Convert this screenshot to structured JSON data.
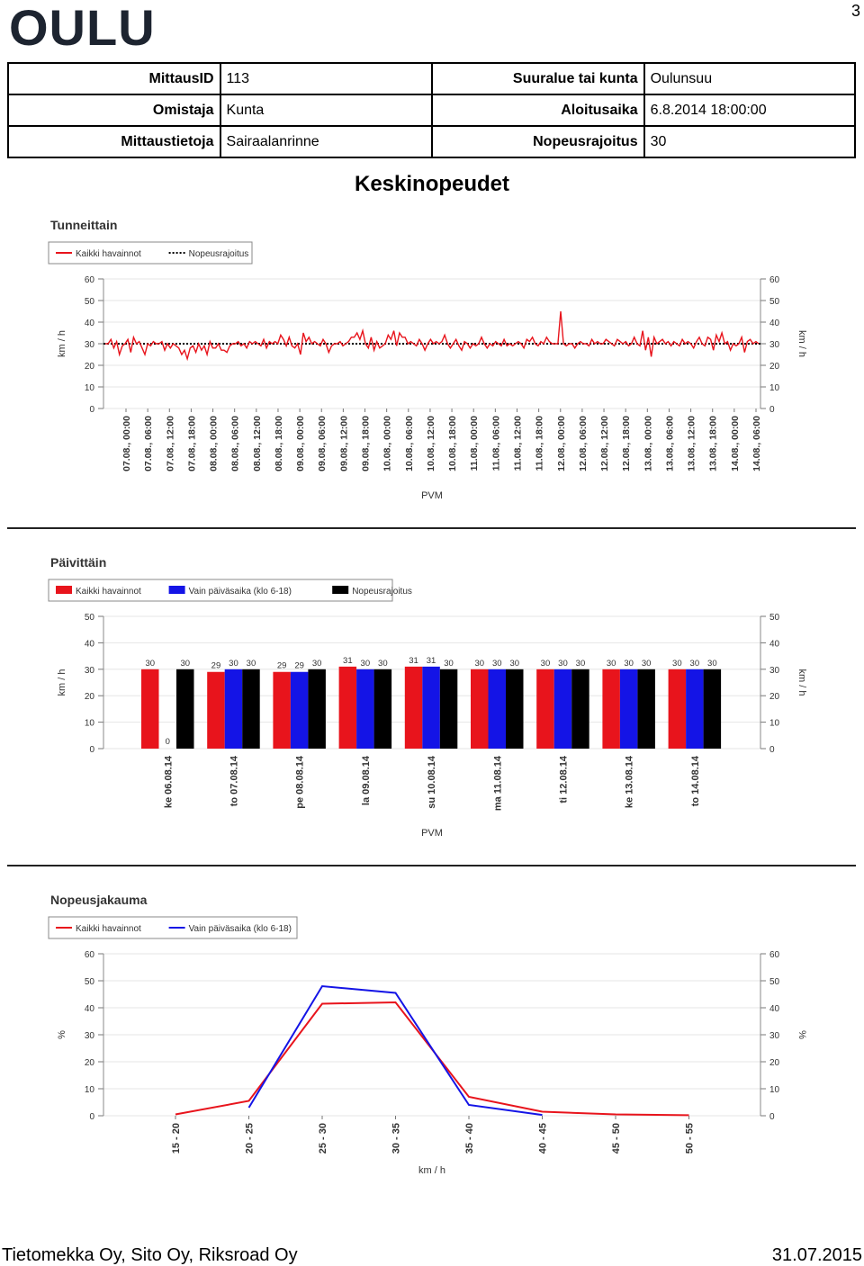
{
  "header": {
    "logo_text": "OULU",
    "page_number": "3"
  },
  "info": {
    "rows": [
      {
        "k1": "MittausID",
        "v1": "113",
        "k2": "Suuralue tai kunta",
        "v2": "Oulunsuu"
      },
      {
        "k1": "Omistaja",
        "v1": "Kunta",
        "k2": "Aloitusaika",
        "v2": "6.8.2014 18:00:00"
      },
      {
        "k1": "Mittaustietoja",
        "v1": "Sairaalanrinne",
        "k2": "Nopeusrajoitus",
        "v2": "30"
      }
    ]
  },
  "doc_title": "Keskinopeudet",
  "footer": {
    "left": "Tietomekka Oy, Sito Oy, Riksroad Oy",
    "right": "31.07.2015"
  },
  "colors": {
    "red": "#e8141c",
    "blue": "#1414e6",
    "black": "#000000",
    "limit": "#000000"
  },
  "chart_data": [
    {
      "type": "line",
      "title": "Tunneittain",
      "legend": [
        "Kaikki havainnot",
        "Nopeusrajoitus"
      ],
      "legend_placement": "top-left",
      "ylabel": "km / h",
      "ylabel_right": "km / h",
      "xlabel": "PVM",
      "ylim": [
        0,
        60
      ],
      "yticks": [
        0,
        10,
        20,
        30,
        40,
        50,
        60
      ],
      "grid": true,
      "x_tick_labels": [
        "07.08., 00:00",
        "07.08., 06:00",
        "07.08., 12:00",
        "07.08., 18:00",
        "08.08., 00:00",
        "08.08., 06:00",
        "08.08., 12:00",
        "08.08., 18:00",
        "09.08., 00:00",
        "09.08., 06:00",
        "09.08., 12:00",
        "09.08., 18:00",
        "10.08., 00:00",
        "10.08., 06:00",
        "10.08., 12:00",
        "10.08., 18:00",
        "11.08., 00:00",
        "11.08., 06:00",
        "11.08., 12:00",
        "11.08., 18:00",
        "12.08., 00:00",
        "12.08., 06:00",
        "12.08., 12:00",
        "12.08., 18:00",
        "13.08., 00:00",
        "13.08., 06:00",
        "13.08., 12:00",
        "13.08., 18:00",
        "14.08., 00:00",
        "14.08., 06:00"
      ],
      "series": [
        {
          "name": "Kaikki havainnot",
          "color": "red",
          "values": [
            30,
            30,
            32,
            28,
            31,
            25,
            29,
            30,
            32,
            26,
            33,
            30,
            31,
            28,
            25,
            30,
            29,
            31,
            30,
            30,
            31,
            27,
            30,
            28,
            30,
            29,
            28,
            25,
            27,
            23,
            28,
            29,
            26,
            30,
            27,
            29,
            25,
            31,
            28,
            28,
            30,
            27,
            27,
            26,
            29,
            30,
            30,
            31,
            29,
            30,
            28,
            31,
            30,
            31,
            30,
            29,
            32,
            28,
            31,
            30,
            31,
            30,
            34,
            32,
            29,
            33,
            29,
            28,
            30,
            25,
            35,
            31,
            33,
            30,
            31,
            30,
            29,
            32,
            30,
            26,
            29,
            30,
            30,
            31,
            29,
            30,
            31,
            33,
            33,
            35,
            32,
            36,
            30,
            28,
            33,
            27,
            31,
            28,
            29,
            30,
            34,
            32,
            36,
            29,
            35,
            33,
            33,
            30,
            31,
            30,
            29,
            32,
            30,
            27,
            30,
            32,
            30,
            31,
            30,
            31,
            34,
            30,
            28,
            30,
            32,
            29,
            27,
            31,
            30,
            28,
            30,
            29,
            30,
            33,
            30,
            28,
            30,
            29,
            31,
            30,
            29,
            32,
            29,
            30,
            29,
            30,
            31,
            30,
            28,
            32,
            31,
            33,
            30,
            29,
            31,
            30,
            33,
            31,
            30,
            30,
            30,
            45,
            30,
            29,
            30,
            30,
            28,
            30,
            31,
            30,
            30,
            29,
            32,
            30,
            31,
            30,
            30,
            32,
            31,
            30,
            29,
            32,
            31,
            30,
            31,
            29,
            30,
            33,
            30,
            29,
            36,
            27,
            33,
            24,
            33,
            30,
            31,
            32,
            30,
            31,
            29,
            31,
            30,
            29,
            32,
            30,
            31,
            30,
            28,
            31,
            33,
            30,
            29,
            33,
            32,
            27,
            34,
            31,
            35,
            30,
            31,
            27,
            30,
            29,
            30,
            33,
            26,
            31,
            32,
            30,
            31,
            30
          ]
        },
        {
          "name": "Nopeusrajoitus",
          "color": "black",
          "dashed": true,
          "values": [
            30
          ]
        }
      ]
    },
    {
      "type": "bar",
      "title": "Päivittäin",
      "legend": [
        "Kaikki havainnot",
        "Vain päiväsaika (klo 6-18)",
        "Nopeusrajoitus"
      ],
      "legend_placement": "top-left",
      "ylabel": "km / h",
      "ylabel_right": "km / h",
      "xlabel": "PVM",
      "ylim": [
        0,
        50
      ],
      "yticks": [
        0,
        10,
        20,
        30,
        40,
        50
      ],
      "grid": true,
      "categories": [
        "ke 06.08.14",
        "to 07.08.14",
        "pe 08.08.14",
        "la 09.08.14",
        "su 10.08.14",
        "ma 11.08.14",
        "ti 12.08.14",
        "ke 13.08.14",
        "to 14.08.14"
      ],
      "series": [
        {
          "name": "Kaikki havainnot",
          "color": "red",
          "values": [
            30,
            29,
            29,
            31,
            31,
            30,
            30,
            30,
            30
          ],
          "labels": [
            "30",
            "29",
            "29",
            "31",
            "31",
            "30",
            "30",
            "30",
            "30"
          ]
        },
        {
          "name": "Vain päiväsaika (klo 6-18)",
          "color": "blue",
          "values": [
            0,
            30,
            29,
            30,
            31,
            30,
            30,
            30,
            30
          ],
          "labels": [
            "0",
            "30",
            "29",
            "30",
            "31",
            "30",
            "30",
            "30",
            "30"
          ]
        },
        {
          "name": "Nopeusrajoitus",
          "color": "black",
          "values": [
            30,
            30,
            30,
            30,
            30,
            30,
            30,
            30,
            30
          ],
          "labels": [
            "30",
            "30",
            "30",
            "30",
            "30",
            "30",
            "30",
            "30",
            "30"
          ]
        }
      ]
    },
    {
      "type": "line",
      "title": "Nopeusjakauma",
      "legend": [
        "Kaikki havainnot",
        "Vain päiväsaika (klo 6-18)"
      ],
      "legend_placement": "top-left",
      "ylabel": "%",
      "ylabel_right": "%",
      "xlabel": "km / h",
      "ylim": [
        0,
        60
      ],
      "yticks": [
        0,
        10,
        20,
        30,
        40,
        50,
        60
      ],
      "grid": true,
      "categories": [
        "15 - 20",
        "20 - 25",
        "25 - 30",
        "30 - 35",
        "35 - 40",
        "40 - 45",
        "45 - 50",
        "50 - 55"
      ],
      "series": [
        {
          "name": "Kaikki havainnot",
          "color": "red",
          "values": [
            0.5,
            5.5,
            41.5,
            42,
            7,
            1.5,
            0.5,
            0.2
          ]
        },
        {
          "name": "Vain päiväsaika (klo 6-18)",
          "color": "blue",
          "values": [
            null,
            3,
            48,
            45.5,
            4,
            0.3,
            null,
            null
          ]
        }
      ]
    }
  ]
}
